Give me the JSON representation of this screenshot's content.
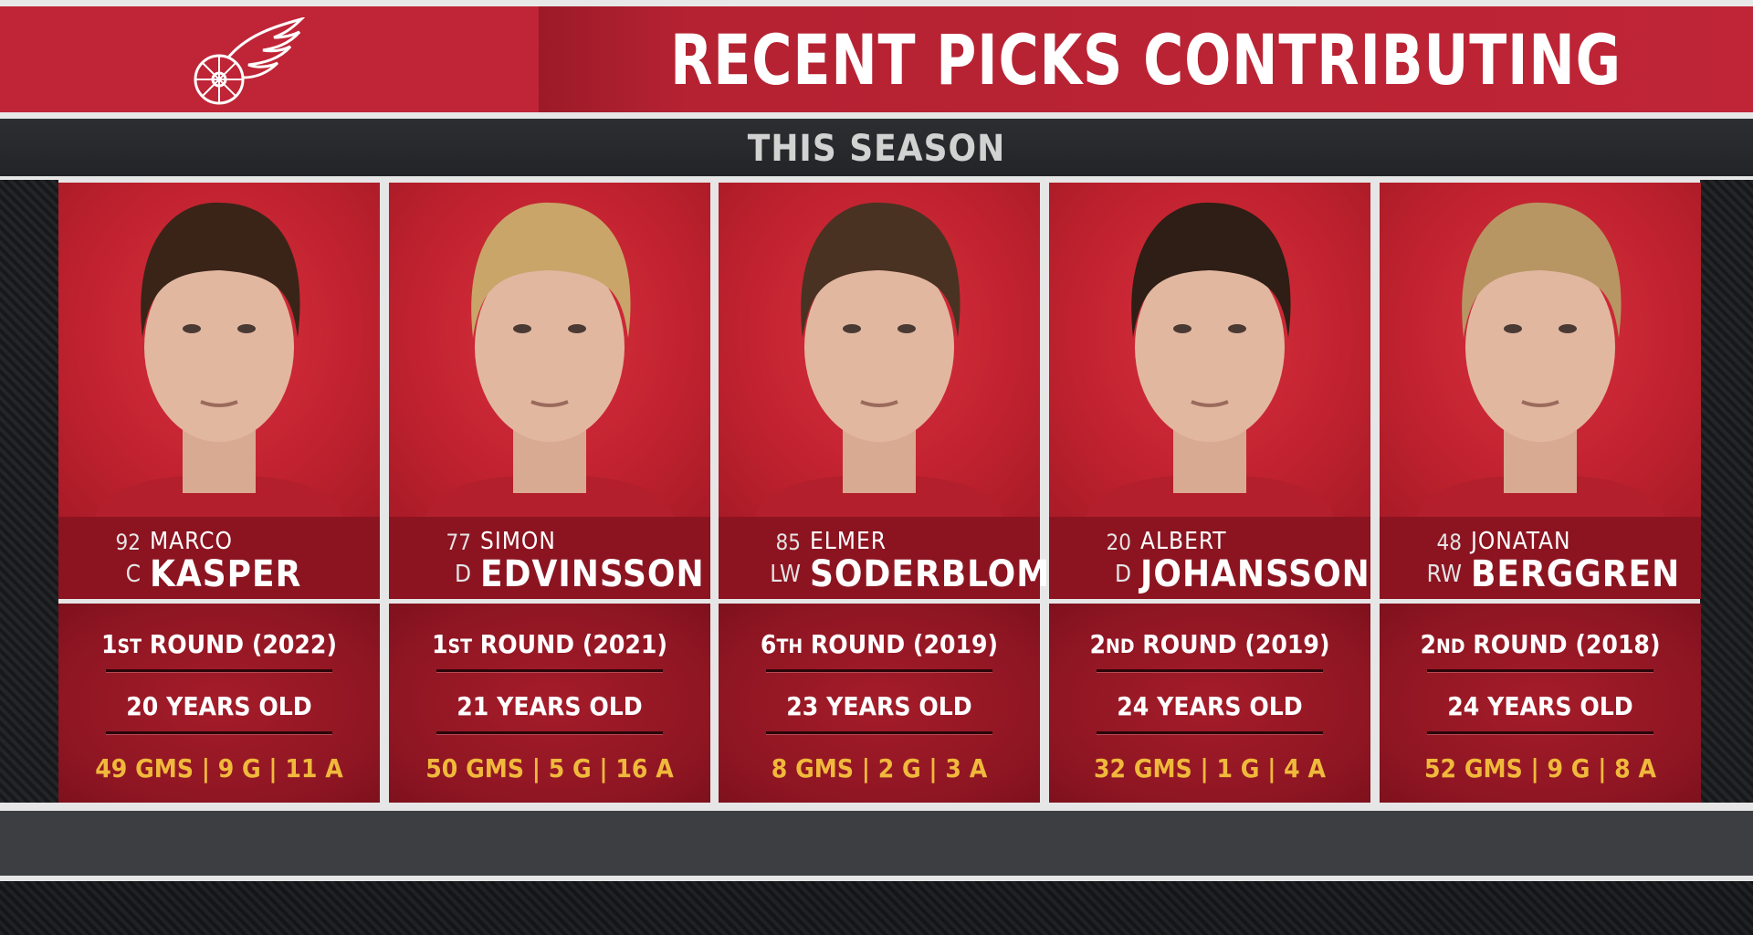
{
  "header": {
    "title": "RECENT PICKS CONTRIBUTING",
    "subtitle": "THIS SEASON",
    "logo": "detroit-red-wings-winged-wheel"
  },
  "colors": {
    "red": "#bf2536",
    "dark_red": "#8c1420",
    "gold": "#f0b93b"
  },
  "players": [
    {
      "number": "92",
      "position": "C",
      "first": "MARCO",
      "last": "KASPER",
      "round_num": "1",
      "round_suffix": "ST",
      "round_rest": " ROUND (2022)",
      "age": "20 YEARS OLD",
      "stats": "49 GMS | 9 G | 11 A",
      "hair": "#3a2418"
    },
    {
      "number": "77",
      "position": "D",
      "first": "SIMON",
      "last": "EDVINSSON",
      "round_num": "1",
      "round_suffix": "ST",
      "round_rest": " ROUND (2021)",
      "age": "21 YEARS OLD",
      "stats": "50 GMS | 5 G | 16 A",
      "hair": "#c9a56a"
    },
    {
      "number": "85",
      "position": "LW",
      "first": "ELMER",
      "last": "SODERBLOM",
      "round_num": "6",
      "round_suffix": "TH",
      "round_rest": " ROUND (2019)",
      "age": "23 YEARS OLD",
      "stats": "8 GMS | 2 G | 3 A",
      "hair": "#4a3222"
    },
    {
      "number": "20",
      "position": "D",
      "first": "ALBERT",
      "last": "JOHANSSON",
      "round_num": "2",
      "round_suffix": "ND",
      "round_rest": " ROUND (2019)",
      "age": "24 YEARS OLD",
      "stats": "32 GMS | 1 G | 4 A",
      "hair": "#2e1e15"
    },
    {
      "number": "48",
      "position": "RW",
      "first": "JONATAN",
      "last": "BERGGREN",
      "round_num": "2",
      "round_suffix": "ND",
      "round_rest": " ROUND (2018)",
      "age": "24 YEARS OLD",
      "stats": "52 GMS | 9 G | 8 A",
      "hair": "#b89664"
    }
  ]
}
